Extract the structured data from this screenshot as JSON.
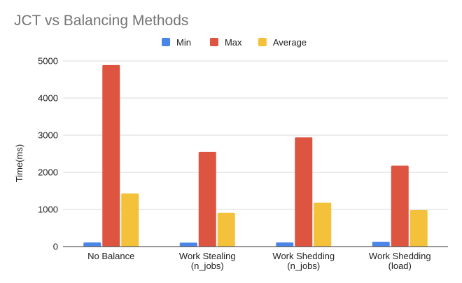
{
  "chart_data": {
    "type": "bar",
    "title": "JCT vs Balancing Methods",
    "xlabel": "",
    "ylabel": "Time(ms)",
    "ylim": [
      0,
      5000
    ],
    "yticks": [
      0,
      1000,
      2000,
      3000,
      4000,
      5000
    ],
    "grid": true,
    "legend_position": "top",
    "categories": [
      [
        "No Balance"
      ],
      [
        "Work Stealing",
        "(n_jobs)"
      ],
      [
        "Work Shedding",
        "(n_jobs)"
      ],
      [
        "Work Shedding",
        "(load)"
      ]
    ],
    "series": [
      {
        "name": "Min",
        "color": "#4a86e8",
        "values": [
          110,
          105,
          110,
          130
        ]
      },
      {
        "name": "Max",
        "color": "#dd5540",
        "values": [
          4890,
          2550,
          2940,
          2180
        ]
      },
      {
        "name": "Average",
        "color": "#f4c13b",
        "values": [
          1430,
          910,
          1180,
          980
        ]
      }
    ]
  }
}
